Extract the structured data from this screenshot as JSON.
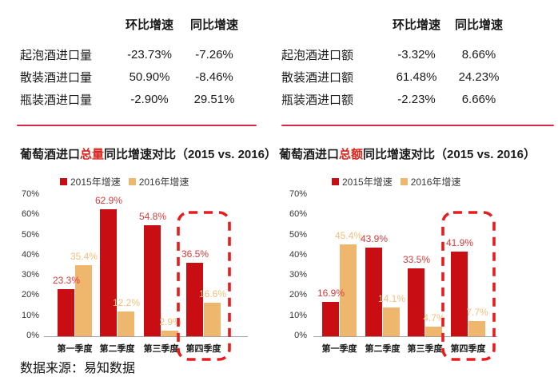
{
  "tables": [
    {
      "columns": [
        "环比增速",
        "同比增速"
      ],
      "rows": [
        {
          "label": "起泡酒进口量",
          "mom": "-23.73%",
          "yoy": "-7.26%"
        },
        {
          "label": "散装酒进口量",
          "mom": "50.90%",
          "yoy": "-8.46%"
        },
        {
          "label": "瓶装酒进口量",
          "mom": "-2.90%",
          "yoy": "29.51%"
        }
      ]
    },
    {
      "columns": [
        "环比增速",
        "同比增速"
      ],
      "rows": [
        {
          "label": "起泡酒进口额",
          "mom": "-3.32%",
          "yoy": "8.66%"
        },
        {
          "label": "散装酒进口额",
          "mom": "61.48%",
          "yoy": "24.23%"
        },
        {
          "label": "瓶装酒进口额",
          "mom": "-2.23%",
          "yoy": "6.66%"
        }
      ]
    }
  ],
  "chart_data": [
    {
      "type": "bar",
      "title_prefix": "葡萄酒进口",
      "title_highlight": "总量",
      "title_suffix": "同比增速对比（2015 vs. 2016）",
      "categories": [
        "第一季度",
        "第二季度",
        "第三季度",
        "第四季度"
      ],
      "series": [
        {
          "name": "2015年增速",
          "color": "#c90e13",
          "label_color": "#d23c3c",
          "values": [
            23.3,
            62.9,
            54.8,
            36.5
          ]
        },
        {
          "name": "2016年增速",
          "color": "#efb76d",
          "label_color": "#f0c07d",
          "values": [
            35.4,
            12.2,
            2.9,
            16.6
          ]
        }
      ],
      "value_suffix": "%",
      "ylim": [
        0,
        70
      ],
      "yticks": [
        "0%",
        "10%",
        "20%",
        "30%",
        "40%",
        "50%",
        "60%",
        "70%"
      ],
      "grid": false,
      "legend_position": "top",
      "highlighted_category": "第四季度"
    },
    {
      "type": "bar",
      "title_prefix": "葡萄酒进口",
      "title_highlight": "总额",
      "title_suffix": "同比增速对比（2015 vs. 2016）",
      "categories": [
        "第一季度",
        "第二季度",
        "第三季度",
        "第四季度"
      ],
      "series": [
        {
          "name": "2015年增速",
          "color": "#c90e13",
          "label_color": "#d23c3c",
          "values": [
            16.9,
            43.9,
            33.5,
            41.9
          ]
        },
        {
          "name": "2016年增速",
          "color": "#efb76d",
          "label_color": "#f0c07d",
          "values": [
            45.4,
            14.1,
            4.7,
            7.7
          ]
        }
      ],
      "value_suffix": "%",
      "ylim": [
        0,
        70
      ],
      "yticks": [
        "0%",
        "10%",
        "20%",
        "30%",
        "40%",
        "50%",
        "60%",
        "70%"
      ],
      "grid": false,
      "legend_position": "top",
      "highlighted_category": "第四季度"
    }
  ],
  "colors": {
    "divider_red": "#dd2645",
    "highlight_box_red": "#e81c1e",
    "title_highlight_red": "#d9251d"
  },
  "source_note": "数据来源：易知数据"
}
